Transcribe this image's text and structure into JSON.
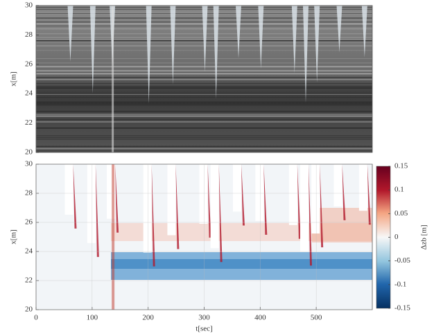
{
  "chart_data": [
    {
      "type": "image",
      "ylabel": "x[m]",
      "xlim": [
        0,
        600
      ],
      "ylim": [
        20,
        30
      ],
      "yticks": [
        20,
        22,
        24,
        26,
        28,
        30
      ]
    },
    {
      "type": "heatmap",
      "xlabel": "t[sec]",
      "ylabel": "x[m]",
      "xlim": [
        0,
        600
      ],
      "ylim": [
        20,
        30
      ],
      "xticks": [
        0,
        100,
        200,
        300,
        400,
        500
      ],
      "yticks": [
        20,
        22,
        24,
        26,
        28,
        30
      ],
      "grid": true,
      "colorbar": {
        "label": "Δzb [m]",
        "lim": [
          -0.15,
          0.15
        ],
        "ticks": [
          0.15,
          0.1,
          0.05,
          0,
          -0.05,
          -0.1,
          -0.15
        ]
      }
    }
  ]
}
